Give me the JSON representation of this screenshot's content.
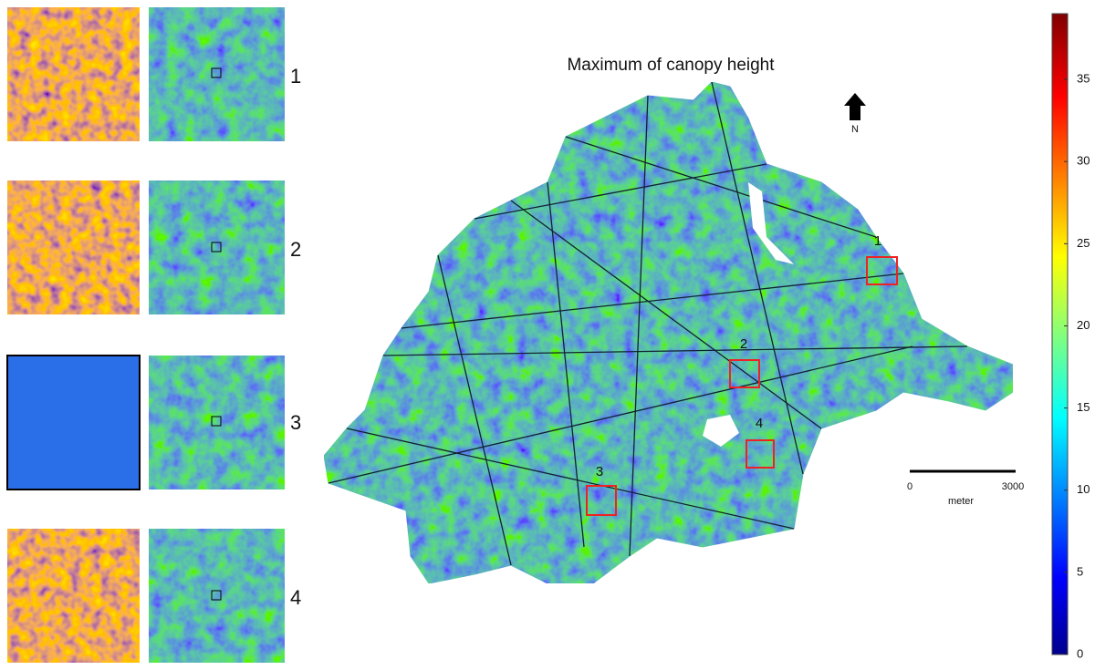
{
  "title": "Maximum of canopy height",
  "insets": [
    {
      "label": "1"
    },
    {
      "label": "2"
    },
    {
      "label": "3"
    },
    {
      "label": "4"
    }
  ],
  "map_sites": [
    {
      "label": "1"
    },
    {
      "label": "2"
    },
    {
      "label": "3"
    },
    {
      "label": "4"
    }
  ],
  "north": "N",
  "scale_bar": {
    "start": 0,
    "end": 3000,
    "unit": "meter"
  },
  "colorbar": {
    "lim": [
      0,
      39
    ],
    "ticks": [
      0,
      5,
      10,
      15,
      20,
      25,
      30,
      35
    ]
  }
}
